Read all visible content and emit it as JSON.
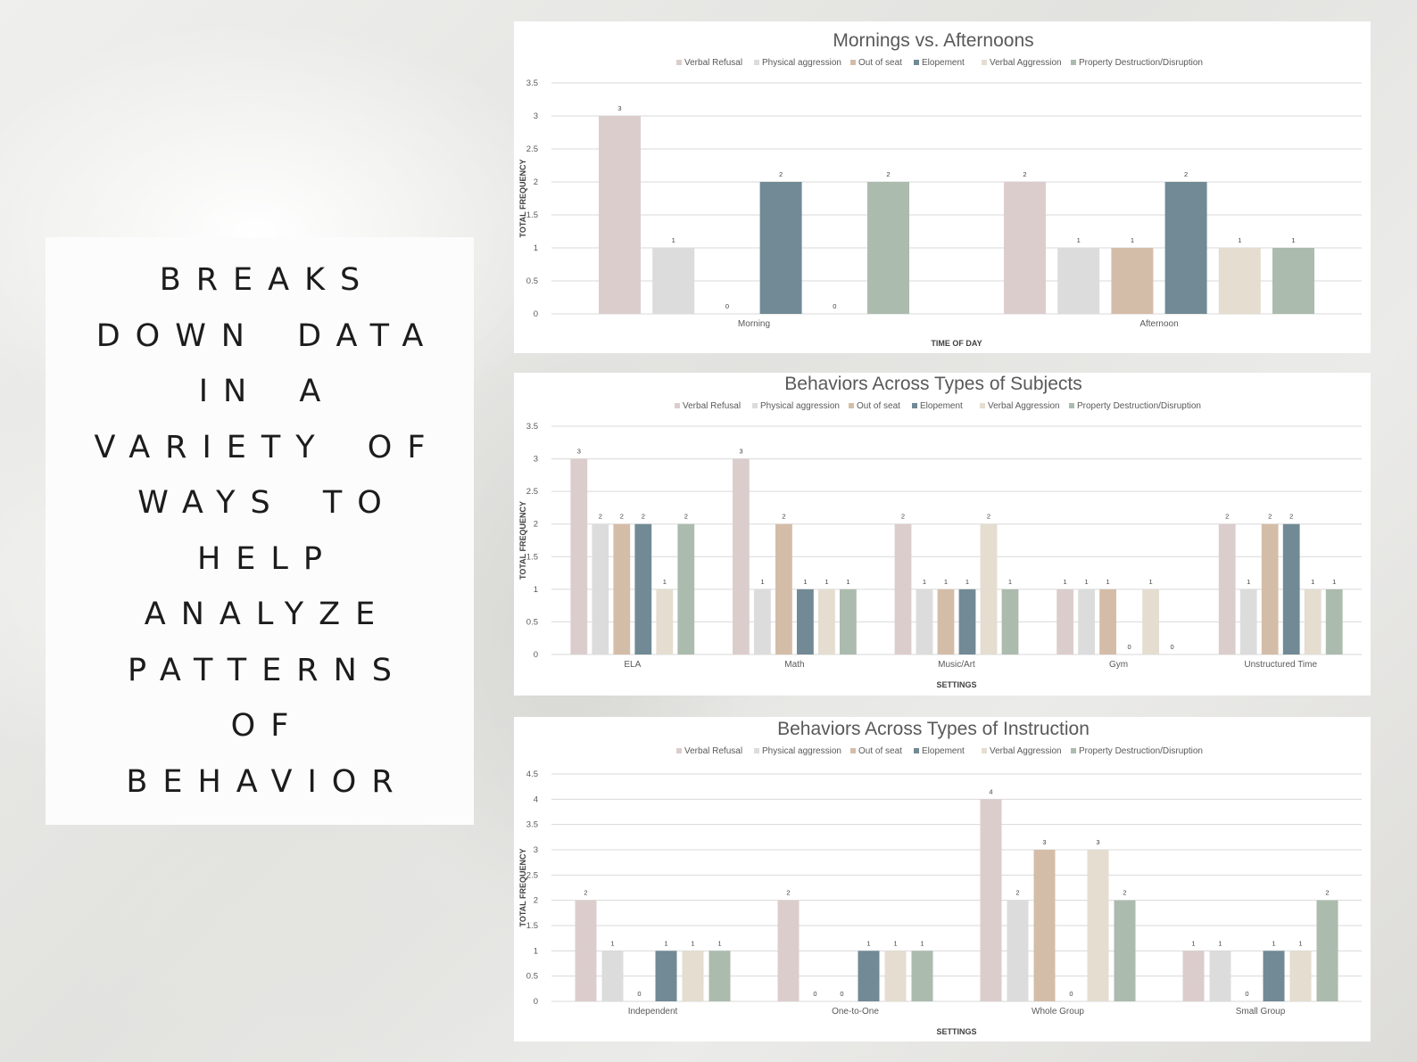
{
  "title_card": {
    "lines": [
      "BREAKS",
      "DOWN DATA",
      "IN A",
      "VARIETY OF",
      "WAYS TO",
      "HELP",
      "ANALYZE",
      "PATTERNS",
      "OF",
      "BEHAVIOR"
    ]
  },
  "legend_colors": [
    "#dccdcd",
    "#dbdcdb",
    "#d4bda8",
    "#718a95",
    "#e4ddd0",
    "#abbbae"
  ],
  "chart_data": [
    {
      "type": "bar",
      "title": "Mornings vs. Afternoons",
      "xlabel": "TIME OF DAY",
      "ylabel": "TOTAL FREQUENCY",
      "ylim": [
        0,
        3.5
      ],
      "yticks": [
        "0",
        "0.5",
        "1",
        "1.5",
        "2",
        "2.5",
        "3",
        "3.5"
      ],
      "grid": true,
      "legend_position": "top",
      "categories": [
        "Morning",
        "Afternoon"
      ],
      "series": [
        {
          "name": "Verbal Refusal",
          "values": [
            3,
            2
          ]
        },
        {
          "name": "Physical aggression",
          "values": [
            1,
            1
          ]
        },
        {
          "name": "Out of seat",
          "values": [
            0,
            1
          ]
        },
        {
          "name": "Elopement",
          "values": [
            2,
            2
          ]
        },
        {
          "name": "Verbal Aggression",
          "values": [
            0,
            1
          ]
        },
        {
          "name": "Property Destruction/Disruption",
          "values": [
            2,
            1
          ]
        }
      ]
    },
    {
      "type": "bar",
      "title": "Behaviors Across Types of Subjects",
      "xlabel": "SETTINGS",
      "ylabel": "TOTAL FREQUENCY",
      "ylim": [
        0,
        3.5
      ],
      "yticks": [
        "0",
        "0.5",
        "1",
        "1.5",
        "2",
        "2.5",
        "3",
        "3.5"
      ],
      "grid": true,
      "legend_position": "top",
      "categories": [
        "ELA",
        "Math",
        "Music/Art",
        "Gym",
        "Unstructured Time"
      ],
      "series": [
        {
          "name": "Verbal Refusal",
          "values": [
            3,
            3,
            2,
            1,
            2
          ]
        },
        {
          "name": "Physical aggression",
          "values": [
            2,
            1,
            1,
            1,
            1
          ]
        },
        {
          "name": "Out of seat",
          "values": [
            2,
            2,
            1,
            1,
            2
          ]
        },
        {
          "name": "Elopement",
          "values": [
            2,
            1,
            1,
            0,
            2
          ]
        },
        {
          "name": "Verbal Aggression",
          "values": [
            1,
            1,
            2,
            1,
            1
          ]
        },
        {
          "name": "Property Destruction/Disruption",
          "values": [
            2,
            1,
            1,
            0,
            1
          ]
        }
      ]
    },
    {
      "type": "bar",
      "title": "Behaviors Across Types of Instruction",
      "xlabel": "SETTINGS",
      "ylabel": "TOTAL FREQUENCY",
      "ylim": [
        0,
        4.5
      ],
      "yticks": [
        "0",
        "0.5",
        "1",
        "1.5",
        "2",
        "2.5",
        "3",
        "3.5",
        "4",
        "4.5"
      ],
      "grid": true,
      "legend_position": "top",
      "categories": [
        "Independent",
        "One-to-One",
        "Whole Group",
        "Small Group"
      ],
      "series": [
        {
          "name": "Verbal Refusal",
          "values": [
            2,
            2,
            4,
            1
          ]
        },
        {
          "name": "Physical aggression",
          "values": [
            1,
            0,
            2,
            1
          ]
        },
        {
          "name": "Out of seat",
          "values": [
            0,
            0,
            3,
            0
          ]
        },
        {
          "name": "Elopement",
          "values": [
            1,
            1,
            0,
            1
          ]
        },
        {
          "name": "Verbal Aggression",
          "values": [
            1,
            1,
            3,
            1
          ]
        },
        {
          "name": "Property Destruction/Disruption",
          "values": [
            1,
            1,
            2,
            2
          ]
        }
      ]
    }
  ]
}
